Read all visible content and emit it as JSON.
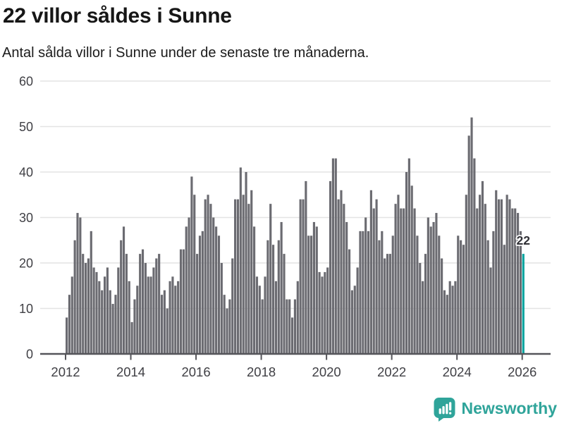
{
  "header": {
    "title": "22 villor såldes i Sunne",
    "subtitle": "Antal sålda villor i Sunne under de senaste tre månaderna."
  },
  "chart_data": {
    "type": "bar",
    "title": "22 villor såldes i Sunne",
    "subtitle": "Antal sålda villor i Sunne under de senaste tre månaderna.",
    "xlabel": "",
    "ylabel": "",
    "x_start": "2012-01",
    "x_interval": "month",
    "x_end": "2026-01",
    "values": [
      8,
      13,
      17,
      25,
      31,
      30,
      22,
      20,
      21,
      27,
      19,
      18,
      16,
      14,
      17,
      19,
      14,
      11,
      13,
      19,
      25,
      28,
      22,
      16,
      7,
      12,
      15,
      22,
      23,
      20,
      17,
      17,
      19,
      21,
      22,
      13,
      14,
      10,
      16,
      17,
      15,
      16,
      23,
      23,
      28,
      30,
      39,
      35,
      22,
      26,
      27,
      34,
      35,
      33,
      30,
      28,
      26,
      20,
      13,
      10,
      12,
      21,
      34,
      34,
      41,
      35,
      40,
      33,
      36,
      28,
      17,
      15,
      12,
      17,
      25,
      33,
      24,
      16,
      25,
      29,
      22,
      12,
      12,
      8,
      12,
      16,
      34,
      34,
      38,
      26,
      26,
      29,
      28,
      18,
      17,
      18,
      19,
      38,
      43,
      43,
      34,
      36,
      33,
      29,
      23,
      14,
      15,
      19,
      27,
      27,
      30,
      27,
      36,
      32,
      34,
      25,
      27,
      21,
      22,
      22,
      26,
      33,
      35,
      32,
      32,
      40,
      43,
      37,
      32,
      26,
      20,
      16,
      22,
      30,
      28,
      29,
      31,
      26,
      21,
      14,
      13,
      16,
      15,
      16,
      26,
      25,
      24,
      35,
      48,
      52,
      43,
      32,
      35,
      38,
      33,
      25,
      19,
      27,
      36,
      34,
      34,
      24,
      35,
      34,
      32,
      32,
      31,
      27,
      22
    ],
    "highlight": "last",
    "highlight_value_label": "22",
    "y_ticks": [
      0,
      10,
      20,
      30,
      40,
      50,
      60
    ],
    "ylim": [
      0,
      60
    ],
    "x_tick_labels": [
      "2012",
      "2014",
      "2016",
      "2018",
      "2020",
      "2022",
      "2024",
      "2026"
    ],
    "grid": true,
    "legend": "none",
    "bar_color": "#6b6b71",
    "highlight_color": "#00a39e",
    "grid_color": "#e4e4e4",
    "axis_color": "#55555a",
    "tick_label_color": "#404045",
    "value_label_color": "#323237"
  },
  "footer": {
    "brand": "Newsworthy",
    "logo_icon": "bar-chart-speech-bubble-icon",
    "brand_color": "#2fa49a"
  }
}
